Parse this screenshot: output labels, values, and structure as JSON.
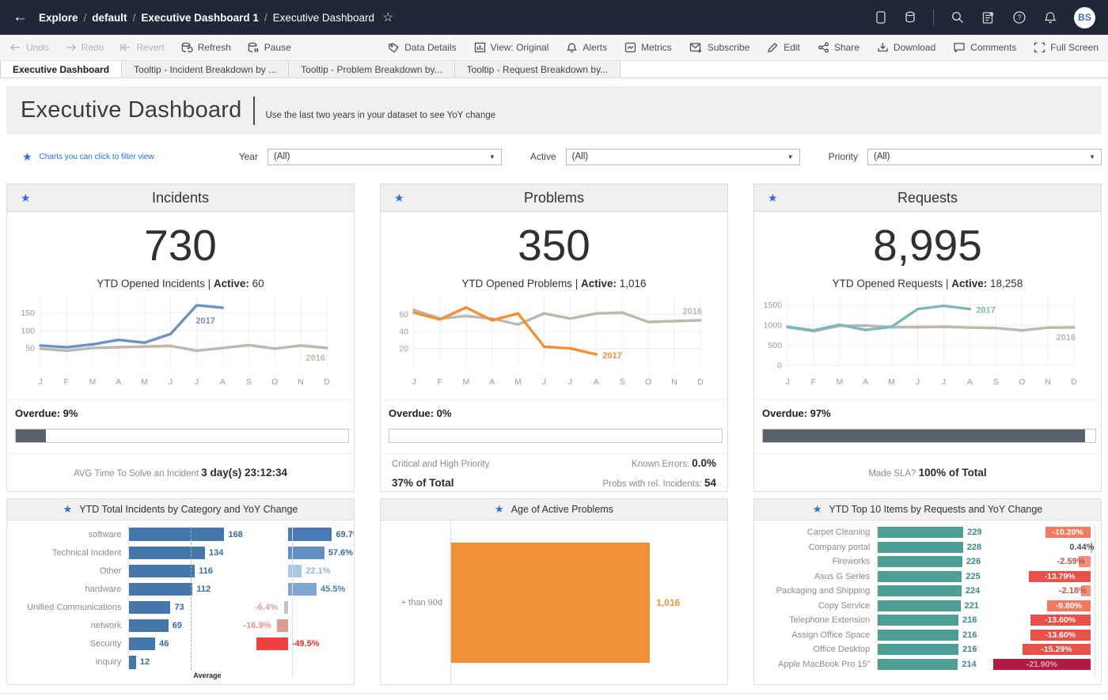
{
  "colors": {
    "accent_blue": "#2e6fd8",
    "navy": "#1e2837",
    "link_blue": "#2b6cd4",
    "progress_fill": "#59616c",
    "incident_blue": "#4577ad",
    "problem_orange": "#f0913a",
    "request_teal": "#4f9e96",
    "alert_red": "#f04041",
    "crimson": "#b01c44"
  },
  "chrome": {
    "nav": {
      "breadcrumb": [
        {
          "label": "Explore",
          "bold": true
        },
        {
          "label": "default",
          "bold": true
        },
        {
          "label": "Executive Dashboard 1",
          "bold": true
        },
        {
          "label": "Executive Dashboard",
          "bold": false
        }
      ],
      "right_icons": [
        "device-preview",
        "data-source",
        "divider",
        "search",
        "favorites-doc",
        "help",
        "notifications"
      ],
      "avatar_initials": "BS"
    },
    "toolbar": {
      "left": [
        {
          "name": "undo",
          "icon": "arrow-left",
          "label": "Undo",
          "disabled": true
        },
        {
          "name": "redo",
          "icon": "arrow-right",
          "label": "Redo",
          "disabled": true
        },
        {
          "name": "revert",
          "icon": "arrow-bar-left",
          "label": "Revert",
          "disabled": true
        },
        {
          "name": "refresh",
          "icon": "db-refresh",
          "label": "Refresh",
          "disabled": false
        },
        {
          "name": "pause",
          "icon": "db-pause",
          "label": "Pause",
          "disabled": false
        }
      ],
      "right": [
        {
          "name": "data-details",
          "icon": "tag",
          "label": "Data Details"
        },
        {
          "name": "view-original",
          "icon": "bar-chart",
          "label": "View: Original"
        },
        {
          "name": "alerts",
          "icon": "bell",
          "label": "Alerts"
        },
        {
          "name": "metrics",
          "icon": "metrics",
          "label": "Metrics"
        },
        {
          "name": "subscribe",
          "icon": "envelope-plus",
          "label": "Subscribe"
        },
        {
          "name": "edit",
          "icon": "pencil",
          "label": "Edit"
        },
        {
          "name": "share",
          "icon": "share",
          "label": "Share"
        },
        {
          "name": "download",
          "icon": "download",
          "label": "Download"
        },
        {
          "name": "comments",
          "icon": "comment",
          "label": "Comments"
        },
        {
          "name": "fullscreen",
          "icon": "fullscreen",
          "label": "Full Screen"
        }
      ]
    },
    "tabs": [
      {
        "label": "Executive Dashboard",
        "active": true
      },
      {
        "label": "Tooltip - Incident Breakdown by ...",
        "active": false
      },
      {
        "label": "Tooltip - Problem Breakdown by...",
        "active": false
      },
      {
        "label": "Tooltip - Request Breakdown by...",
        "active": false
      }
    ]
  },
  "header": {
    "title": "Executive Dashboard",
    "subtitle": "Use the last two years in your dataset to see YoY change",
    "filter_note": "Charts you can click to filter view"
  },
  "filters": [
    {
      "label": "Year",
      "value": "(All)"
    },
    {
      "label": "Active",
      "value": "(All)"
    },
    {
      "label": "Priority",
      "value": "(All)"
    }
  ],
  "panels": [
    {
      "id": "incidents",
      "title": "Incidents",
      "kpi_value": "730",
      "caption": [
        {
          "t": "YTD Opened Incidents | "
        },
        {
          "t": "Active:",
          "b": 1
        },
        {
          "t": " 60"
        }
      ],
      "overdue_label": "Overdue:",
      "overdue_value": "9%",
      "overdue_pct": 9,
      "stats": {
        "type": "center",
        "line": [
          {
            "t": "AVG Time To Solve an Incident ",
            "g": 1
          },
          {
            "t": "3 day(s) 23:12:34",
            "b": 1
          }
        ]
      },
      "subchart_title": "YTD Total Incidents by Category and YoY Change",
      "trend_chart": "incidents-trend",
      "sub_chart": "incidents-categories"
    },
    {
      "id": "problems",
      "title": "Problems",
      "kpi_value": "350",
      "caption": [
        {
          "t": "YTD Opened Problems | "
        },
        {
          "t": "Active:",
          "b": 1
        },
        {
          "t": " 1,016"
        }
      ],
      "overdue_label": "Overdue:",
      "overdue_value": "0%",
      "overdue_pct": 0,
      "stats": {
        "type": "split",
        "left_lines": [
          [
            {
              "t": "Critical and High Priority",
              "g": 1
            }
          ],
          [
            {
              "t": "37% of Total",
              "b": 1
            }
          ]
        ],
        "right_lines": [
          [
            {
              "t": "Known Errors: ",
              "g": 1
            },
            {
              "t": "0.0%",
              "b": 1
            }
          ],
          [
            {
              "t": "Probs with rel. Incidents: ",
              "g": 1
            },
            {
              "t": "54",
              "b": 1
            }
          ]
        ]
      },
      "subchart_title": "Age of Active Problems",
      "trend_chart": "problems-trend",
      "sub_chart": "problems-age"
    },
    {
      "id": "requests",
      "title": "Requests",
      "kpi_value": "8,995",
      "caption": [
        {
          "t": "YTD Opened Requests | "
        },
        {
          "t": "Active:",
          "b": 1
        },
        {
          "t": " 18,258"
        }
      ],
      "overdue_label": "Overdue:",
      "overdue_value": "97%",
      "overdue_pct": 97,
      "stats": {
        "type": "center",
        "line": [
          {
            "t": "Made SLA? ",
            "g": 1
          },
          {
            "t": "100% of Total",
            "b": 1
          }
        ]
      },
      "subchart_title": "YTD Top 10 Items by Requests and YoY Change",
      "trend_chart": "requests-trend",
      "sub_chart": "requests-top10"
    }
  ],
  "chart_data": [
    {
      "id": "incidents-trend",
      "type": "line",
      "categories": [
        "J",
        "F",
        "M",
        "A",
        "M",
        "J",
        "J",
        "A",
        "S",
        "O",
        "N",
        "D"
      ],
      "yticks": [
        50,
        100,
        150
      ],
      "ymax": 190,
      "series": [
        {
          "name": "2016",
          "color": "#bcb7b1",
          "values": [
            48,
            42,
            50,
            52,
            54,
            56,
            42,
            50,
            58,
            48,
            57,
            50
          ],
          "label": {
            "dx": -2,
            "dy": 16,
            "anchor": "end"
          }
        },
        {
          "name": "2017",
          "color": "#6a93c4",
          "values": [
            57,
            52,
            60,
            73,
            65,
            90,
            172,
            165
          ],
          "label": {
            "dx": -34,
            "dy": 20,
            "anchor": "start"
          }
        }
      ]
    },
    {
      "id": "problems-trend",
      "type": "line",
      "categories": [
        "J",
        "F",
        "M",
        "A",
        "M",
        "J",
        "J",
        "A",
        "S",
        "O",
        "N",
        "D"
      ],
      "yticks": [
        20,
        40,
        60
      ],
      "ymax": 78,
      "series": [
        {
          "name": "2016",
          "color": "#bcb7b1",
          "values": [
            65,
            55,
            58,
            55,
            48,
            61,
            55,
            61,
            62,
            51,
            52,
            53
          ],
          "label": {
            "dx": 2,
            "dy": -8,
            "anchor": "end"
          }
        },
        {
          "name": "2017",
          "color": "#f0913a",
          "values": [
            62,
            54,
            68,
            53,
            61,
            22,
            20,
            13
          ],
          "label": {
            "dx": 8,
            "dy": 5,
            "anchor": "start"
          }
        }
      ]
    },
    {
      "id": "requests-trend",
      "type": "line",
      "categories": [
        "J",
        "F",
        "M",
        "A",
        "M",
        "J",
        "J",
        "A",
        "S",
        "O",
        "N",
        "D"
      ],
      "yticks": [
        0,
        500,
        1000,
        1500
      ],
      "ymax": 1650,
      "series": [
        {
          "name": "2016",
          "color": "#bcb7b1",
          "values": [
            950,
            850,
            980,
            990,
            950,
            950,
            960,
            940,
            930,
            870,
            940,
            945
          ],
          "label": {
            "dx": 2,
            "dy": 16,
            "anchor": "end"
          }
        },
        {
          "name": "2017",
          "color": "#7cb8b4",
          "values": [
            960,
            870,
            1010,
            880,
            960,
            1400,
            1480,
            1400
          ],
          "label": {
            "dx": 8,
            "dy": 5,
            "anchor": "start"
          }
        }
      ]
    },
    {
      "id": "incidents-categories",
      "type": "bar-yoy",
      "title": "YTD Total Incidents by Category and YoY Change",
      "categories": [
        "software",
        "Technical Incident",
        "Other",
        "hardware",
        "Unified Communications",
        "network",
        "Security",
        "inquiry"
      ],
      "values": [
        168,
        134,
        116,
        112,
        73,
        69,
        46,
        12
      ],
      "value_labels": [
        "168",
        "134",
        "116",
        "112",
        "73",
        "69",
        "46",
        "12"
      ],
      "bar_color": "#4577ad",
      "value_text_color": "#3c6aa3",
      "yoy": [
        {
          "pct": 69.7,
          "label": "69.7%",
          "bar": "#4a7ab5",
          "text": "#3c6aa3",
          "text_pos": "right"
        },
        {
          "pct": 57.6,
          "label": "57.6%",
          "bar": "#6290c2",
          "text": "#3c6aa3",
          "text_pos": "right"
        },
        {
          "pct": 22.1,
          "label": "22.1%",
          "bar": "#abc7e2",
          "text": "#8fb3d6",
          "text_pos": "right"
        },
        {
          "pct": 45.5,
          "label": "45.5%",
          "bar": "#7ea6d1",
          "text": "#4f7cb0",
          "text_pos": "right"
        },
        {
          "pct": -6.4,
          "label": "-6.4%",
          "bar": "#c9c4c0",
          "text": "#caa6a1",
          "text_pos": "left"
        },
        {
          "pct": -16.9,
          "label": "-16.9%",
          "bar": "#dd9b94",
          "text": "#df9189",
          "text_pos": "left"
        },
        {
          "pct": -49.5,
          "label": "-49.5%",
          "bar": "#f04041",
          "text": "#e3302e",
          "text_pos": "zero-right"
        },
        null
      ],
      "avg_line": {
        "frac": 0.545,
        "label": "Average"
      },
      "layout": {
        "labelW": 148,
        "valW": 140,
        "yoyW": 138,
        "zeroX": 58,
        "pxPerPct": 0.8,
        "maxVal": 168,
        "maxBarPx": 120,
        "barInset": 15
      }
    },
    {
      "id": "problems-age",
      "type": "bar-single",
      "title": "Age of Active Problems",
      "category": "+ than 90d",
      "value": 1016,
      "value_label": "1,016",
      "color": "#f0913a",
      "bar_frac": 0.72
    },
    {
      "id": "requests-top10",
      "type": "bar-yoy",
      "title": "YTD Top 10 Items by Requests and YoY Change",
      "categories": [
        "Carpet Cleaning",
        "Company portal",
        "Fireworks",
        "Asus G Series",
        "Packaging and Shipping",
        "Copy Service",
        "Telephone Extension",
        "Assign Office Space",
        "Office Desktop",
        "Apple MacBook Pro 15”"
      ],
      "values": [
        229,
        228,
        226,
        225,
        224,
        221,
        216,
        216,
        216,
        214
      ],
      "value_labels": [
        "229",
        "228",
        "226",
        "225",
        "224",
        "221",
        "216",
        "216",
        "216",
        "214"
      ],
      "bar_color": "#4f9e96",
      "value_text_color": "#3d8a84",
      "yoy": [
        {
          "pct": -10.2,
          "label": "-10.20%",
          "bar": "#f37a5e",
          "text": "#ffffff",
          "text_pos": "inside"
        },
        {
          "pct": 0.44,
          "label": "0.44%",
          "bar": "#b8b4b0",
          "text": "#555555",
          "text_pos": "outside-left"
        },
        {
          "pct": -2.59,
          "label": "-2.59%",
          "bar": "#f2917c",
          "text": "#c0504a",
          "text_pos": "outside-left"
        },
        {
          "pct": -13.79,
          "label": "-13.79%",
          "bar": "#e8504a",
          "text": "#ffffff",
          "text_pos": "inside"
        },
        {
          "pct": -2.18,
          "label": "-2.18%",
          "bar": "#f2917c",
          "text": "#c0504a",
          "text_pos": "outside-left"
        },
        {
          "pct": -9.8,
          "label": "-9.80%",
          "bar": "#f37a5e",
          "text": "#ffffff",
          "text_pos": "inside"
        },
        {
          "pct": -13.6,
          "label": "-13.60%",
          "bar": "#e8504a",
          "text": "#ffffff",
          "text_pos": "inside"
        },
        {
          "pct": -13.6,
          "label": "-13.60%",
          "bar": "#e8504a",
          "text": "#ffffff",
          "text_pos": "inside"
        },
        {
          "pct": -15.29,
          "label": "-15.29%",
          "bar": "#e8504a",
          "text": "#ffffff",
          "text_pos": "inside"
        },
        {
          "pct": -21.9,
          "label": "-21.90%",
          "bar": "#b01c44",
          "text": "#e9a3b0",
          "text_pos": "inside"
        }
      ],
      "layout": {
        "labelW": 150,
        "valW": 134,
        "yoyW": 142,
        "zeroRightOffset": 10,
        "pxPerPct": 5.6,
        "maxVal": 229,
        "maxBarPx": 108,
        "barInset": 13
      }
    }
  ]
}
